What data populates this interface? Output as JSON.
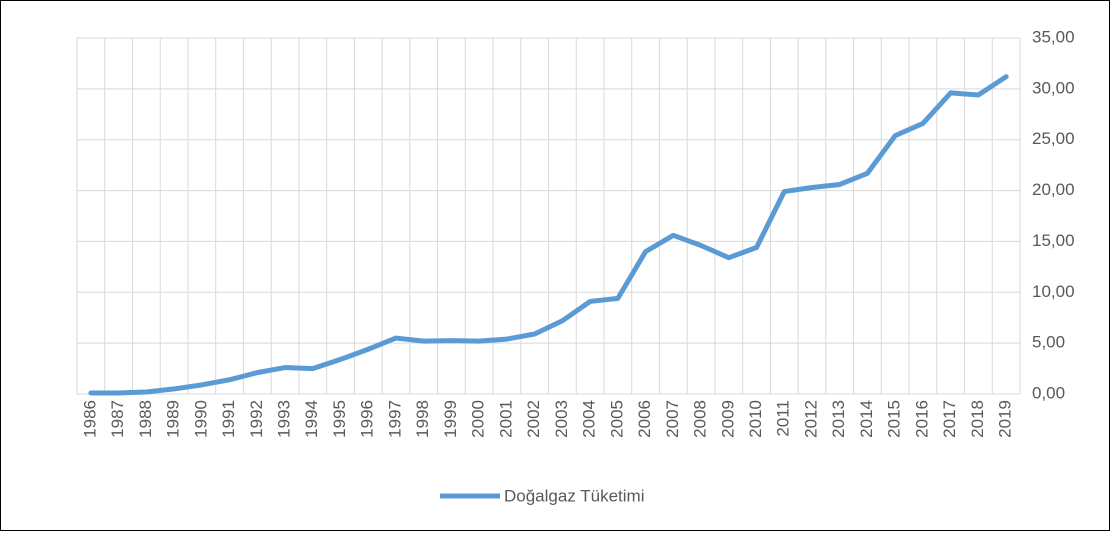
{
  "chart_data": {
    "type": "line",
    "categories": [
      "1986",
      "1987",
      "1988",
      "1989",
      "1990",
      "1991",
      "1992",
      "1993",
      "1994",
      "1995",
      "1996",
      "1997",
      "1998",
      "1999",
      "2000",
      "2001",
      "2002",
      "2003",
      "2004",
      "2005",
      "2006",
      "2007",
      "2008",
      "2009",
      "2010",
      "2011",
      "2012",
      "2013",
      "2014",
      "2015",
      "2016",
      "2017",
      "2018",
      "2019"
    ],
    "series": [
      {
        "name": "Doğalgaz Tüketimi",
        "color": "#5b9bd5",
        "values": [
          0.1,
          0.1,
          0.2,
          0.5,
          0.9,
          1.4,
          2.1,
          2.6,
          2.5,
          3.4,
          4.4,
          5.5,
          5.2,
          5.25,
          5.2,
          5.4,
          5.9,
          7.2,
          9.1,
          9.4,
          14.0,
          15.6,
          14.6,
          13.4,
          14.4,
          19.9,
          20.3,
          20.6,
          21.7,
          25.4,
          26.6,
          29.6,
          29.4,
          31.2
        ]
      }
    ],
    "ylim": [
      0,
      35
    ],
    "yticks": [
      {
        "value": 0,
        "label": "0,00"
      },
      {
        "value": 5,
        "label": "5,00"
      },
      {
        "value": 10,
        "label": "10,00"
      },
      {
        "value": 15,
        "label": "15,00"
      },
      {
        "value": 20,
        "label": "20,00"
      },
      {
        "value": 25,
        "label": "25,00"
      },
      {
        "value": 30,
        "label": "30,00"
      },
      {
        "value": 35,
        "label": "35,00"
      }
    ],
    "grid": true,
    "legend": "bottom"
  }
}
